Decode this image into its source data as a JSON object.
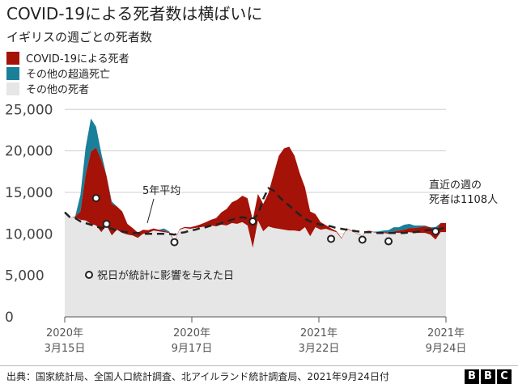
{
  "header": {
    "title": "COVID-19による死者数は横ばいに",
    "subtitle": "イギリスの週ごとの死者数"
  },
  "legend": [
    {
      "label": "COVID-19による死者",
      "color": "#a51208",
      "icon": "legend-swatch-covid"
    },
    {
      "label": "その他の超過死亡",
      "color": "#1a7f99",
      "icon": "legend-swatch-excess"
    },
    {
      "label": "その他の死者",
      "color": "#e6e6e6",
      "icon": "legend-swatch-other"
    }
  ],
  "footer": {
    "source": "出典：国家統計局、全国人口統計調査、北アイルランド統計調査局、2021年9月24日付",
    "logo": [
      "B",
      "B",
      "C"
    ]
  },
  "chart_data": {
    "type": "area",
    "y_axis": {
      "ticks": [
        0,
        5000,
        10000,
        15000,
        20000,
        25000
      ],
      "tick_labels": [
        "0",
        "5,000",
        "10,000",
        "15,000",
        "20,000",
        "25,000"
      ],
      "range": [
        0,
        26000
      ]
    },
    "x_axis": {
      "range": [
        "2020-03-15",
        "2021-09-24"
      ],
      "ticks": [
        {
          "date": "2020-03-15",
          "label1": "2020年",
          "label2": "3月15日"
        },
        {
          "date": "2020-09-17",
          "label1": "2020年",
          "label2": "9月17日"
        },
        {
          "date": "2021-03-22",
          "label1": "2021年",
          "label2": "3月22日"
        },
        {
          "date": "2021-09-24",
          "label1": "2021年",
          "label2": "9月24日"
        }
      ]
    },
    "grid": true,
    "series": [
      {
        "name": "その他の死者",
        "color": "#e6e6e6",
        "values": [
          12700,
          11900,
          12000,
          11700,
          11600,
          11200,
          11000,
          10200,
          11000,
          9800,
          10500,
          10100,
          9900,
          9800,
          9500,
          10000,
          10100,
          10400,
          10300,
          10200,
          10100,
          9100,
          10500,
          10700,
          10600,
          10700,
          10800,
          10900,
          11000,
          10900,
          11100,
          11000,
          11300,
          11200,
          11400,
          11000,
          8300,
          11600,
          10300,
          10900,
          10700,
          10600,
          10500,
          10400,
          10400,
          10300,
          10800,
          9700,
          10800,
          10500,
          10600,
          10400,
          10200,
          9400,
          10600,
          10300,
          10000,
          9700,
          10400,
          10200,
          10100,
          10100,
          10000,
          10100,
          10100,
          10100,
          10200,
          10100,
          10100,
          10100,
          9900,
          9300,
          10200,
          10200
        ]
      },
      {
        "name": "COVID-19による死者",
        "color": "#a51208",
        "values": [
          0,
          0,
          100,
          1000,
          5500,
          8700,
          9400,
          8700,
          6000,
          3800,
          2800,
          2600,
          1300,
          900,
          650,
          500,
          350,
          250,
          200,
          150,
          100,
          80,
          90,
          130,
          180,
          250,
          350,
          500,
          700,
          1000,
          1500,
          2000,
          2500,
          2900,
          3200,
          3300,
          3400,
          3200,
          3300,
          4000,
          6500,
          8800,
          9800,
          10100,
          9000,
          7000,
          4800,
          3000,
          1600,
          900,
          450,
          250,
          150,
          90,
          80,
          60,
          50,
          50,
          50,
          60,
          80,
          100,
          150,
          200,
          300,
          400,
          500,
          600,
          700,
          800,
          900,
          1000,
          1108,
          1108
        ]
      },
      {
        "name": "その他の超過死亡",
        "color": "#1a7f99",
        "values": [
          0,
          0,
          0,
          2000,
          3300,
          4000,
          2500,
          800,
          0,
          300,
          0,
          0,
          0,
          0,
          0,
          0,
          0,
          0,
          0,
          300,
          100,
          0,
          0,
          0,
          0,
          0,
          0,
          0,
          0,
          0,
          0,
          0,
          0,
          0,
          0,
          0,
          0,
          0,
          0,
          0,
          0,
          0,
          0,
          0,
          0,
          0,
          0,
          0,
          0,
          0,
          0,
          0,
          0,
          0,
          0,
          0,
          0,
          0,
          0,
          0,
          100,
          200,
          300,
          500,
          400,
          600,
          500,
          300,
          200,
          100,
          0,
          500,
          0,
          0
        ]
      },
      {
        "name": "5年平均",
        "type": "line",
        "style": "dashed",
        "color": "#222222",
        "values": [
          12600,
          12000,
          11900,
          11500,
          11300,
          11100,
          10900,
          10700,
          10800,
          10600,
          10400,
          10300,
          10200,
          10100,
          10100,
          10000,
          10000,
          10000,
          10000,
          10000,
          10000,
          9900,
          10100,
          10200,
          10400,
          10500,
          10700,
          10800,
          11000,
          11100,
          11300,
          11500,
          11700,
          11900,
          12000,
          11900,
          11800,
          12300,
          14200,
          15500,
          15200,
          14500,
          13900,
          13400,
          12800,
          12300,
          11800,
          11500,
          11300,
          11100,
          11000,
          10900,
          10700,
          10600,
          10500,
          10400,
          10300,
          10200,
          10200,
          10200,
          10100,
          10100,
          10100,
          10100,
          10100,
          10100,
          10200,
          10200,
          10300,
          10400,
          10500,
          10500,
          10600,
          10800
        ]
      }
    ],
    "holiday_points": [
      {
        "index": 6,
        "value": 14300
      },
      {
        "index": 8,
        "value": 11200
      },
      {
        "index": 21,
        "value": 9000
      },
      {
        "index": 36,
        "value": 11500
      },
      {
        "index": 51,
        "value": 9400
      },
      {
        "index": 57,
        "value": 9300
      },
      {
        "index": 62,
        "value": 9100
      },
      {
        "index": 71,
        "value": 10300
      }
    ],
    "annotations": [
      {
        "id": "five-year-average",
        "text": "5年平均"
      },
      {
        "id": "holiday-note",
        "text": "祝日が統計に影響を与えた日"
      },
      {
        "id": "latest-week",
        "lines": [
          "直近の週の",
          "死者は1108人"
        ]
      }
    ]
  }
}
